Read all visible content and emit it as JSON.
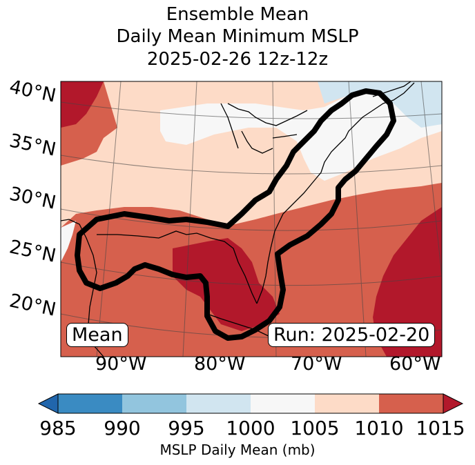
{
  "title": {
    "line1": "Ensemble Mean",
    "line2": "Daily Mean Minimum MSLP",
    "line3": "2025-02-26 12z-12z"
  },
  "map": {
    "lat_labels": [
      "40°N",
      "35°N",
      "30°N",
      "25°N",
      "20°N"
    ],
    "lon_labels": [
      "90°W",
      "80°W",
      "70°W",
      "60°W"
    ],
    "legend_left": "Mean",
    "legend_right": "Run: 2025-02-20"
  },
  "colorbar": {
    "ticks": [
      "985",
      "990",
      "995",
      "1000",
      "1005",
      "1010",
      "1015"
    ],
    "label": "MSLP Daily Mean (mb)",
    "colors": [
      "#2166ac",
      "#3a8bc2",
      "#92c5de",
      "#d1e5f0",
      "#f7f7f7",
      "#fddbc7",
      "#d6604d",
      "#b2182b"
    ]
  }
}
